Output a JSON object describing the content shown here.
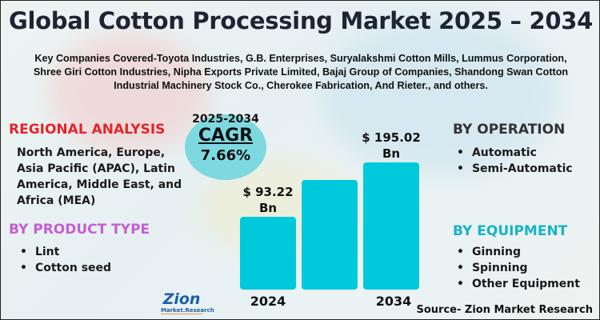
{
  "title": "Global Cotton Processing Market 2025 – 2034",
  "companies": "Key Companies Covered-Toyota Industries, G.B. Enterprises, Suryalakshmi Cotton Mills, Lummus Corporation, Shree Giri Cotton Industries, Nipha Exports Private Limited, Bajaj Group of Companies, Shandong Swan Cotton Industrial Machinery Stock Co., Cherokee Fabrication, And Rieter., and others.",
  "regional": {
    "heading": "REGIONAL ANALYSIS",
    "text": "North America, Europe, Asia Pacific (APAC), Latin America, Middle East, and Africa (MEA)",
    "color": "#e3262c"
  },
  "product": {
    "heading": "BY PRODUCT TYPE",
    "items": [
      "Lint",
      "Cotton seed"
    ],
    "color": "#c55ed3"
  },
  "operation": {
    "heading": "BY OPERATION",
    "items": [
      "Automatic",
      "Semi-Automatic"
    ],
    "color": "#333333"
  },
  "equipment": {
    "heading": "BY EQUIPMENT",
    "items": [
      "Ginning",
      "Spinning",
      "Other Equipment"
    ],
    "color": "#16b3c8"
  },
  "cagr": {
    "period": "2025-2034",
    "label": "CAGR",
    "value": "7.66%"
  },
  "logo": {
    "name": "Zion",
    "sub": "Market.Research"
  },
  "source": "Source- Zion Market Research",
  "chart_data": {
    "type": "bar",
    "categories": [
      "2024",
      "",
      "2034"
    ],
    "values": [
      93.22,
      162,
      195.02
    ],
    "value_labels": [
      "$ 93.22 Bn",
      "",
      "$ 195.02 Bn"
    ],
    "bar_color": "#00c9dc",
    "grid": false
  }
}
